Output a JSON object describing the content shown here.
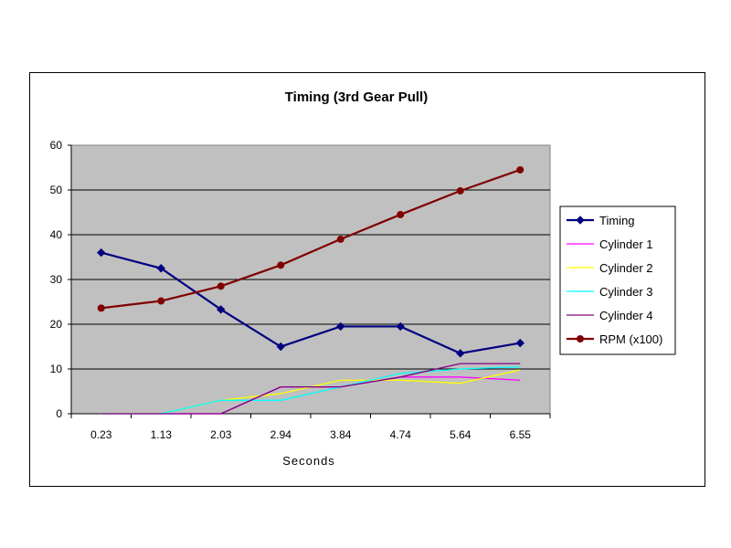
{
  "chart_data": {
    "type": "line",
    "title": "Timing (3rd Gear Pull)",
    "xlabel": "Seconds",
    "ylabel": "",
    "ylim": [
      0,
      60
    ],
    "yticks": [
      "0",
      "10",
      "20",
      "30",
      "40",
      "50",
      "60"
    ],
    "categories": [
      "0.23",
      "1.13",
      "2.03",
      "2.94",
      "3.84",
      "4.74",
      "5.64",
      "6.55"
    ],
    "grid": true,
    "legend": "right",
    "series": [
      {
        "name": "Timing",
        "color": "#000080",
        "marker": "diamond",
        "values": [
          36,
          32.5,
          23.3,
          15,
          19.5,
          19.5,
          13.5,
          15.8
        ]
      },
      {
        "name": "Cylinder 1",
        "color": "#ff00ff",
        "marker": "none",
        "values": [
          0,
          0,
          0,
          6,
          6,
          8.2,
          8.2,
          7.5
        ]
      },
      {
        "name": "Cylinder 2",
        "color": "#ffff00",
        "marker": "none",
        "values": [
          0,
          0,
          3,
          4.5,
          7.5,
          7.5,
          6.8,
          9.8
        ]
      },
      {
        "name": "Cylinder 3",
        "color": "#00ffff",
        "marker": "none",
        "values": [
          0,
          0,
          3,
          3,
          6,
          9,
          10,
          10.5
        ]
      },
      {
        "name": "Cylinder 4",
        "color": "#800080",
        "marker": "none",
        "values": [
          0,
          0,
          0,
          6,
          6,
          8.2,
          11.2,
          11.2
        ]
      },
      {
        "name": "RPM (x100)",
        "color": "#800000",
        "marker": "circle",
        "values": [
          23.6,
          25.2,
          28.5,
          33.2,
          39,
          44.5,
          49.8,
          54.5
        ]
      }
    ]
  }
}
